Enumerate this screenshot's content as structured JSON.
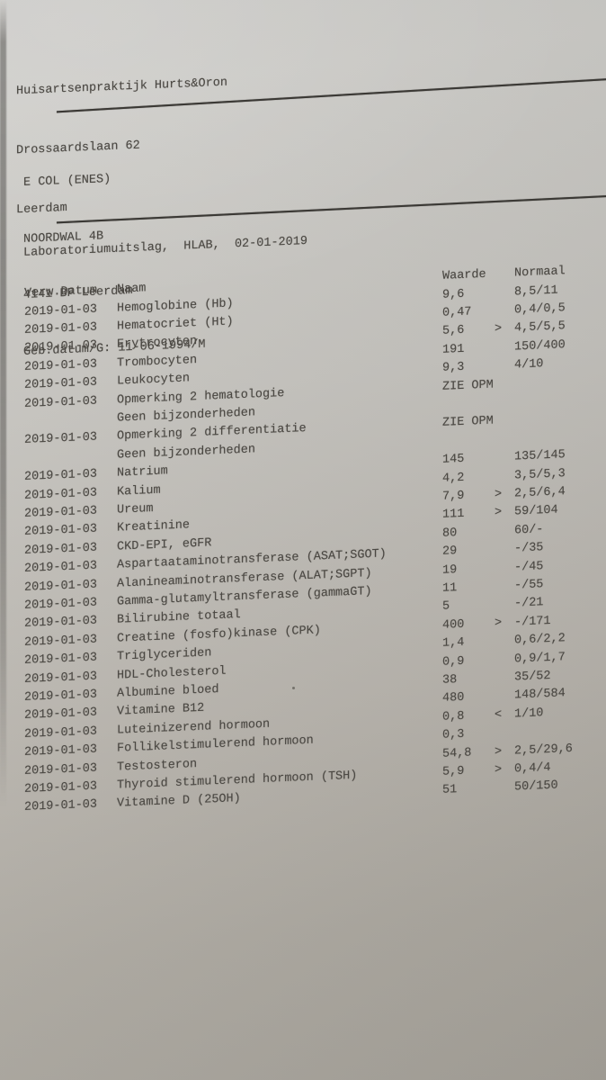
{
  "document": {
    "clinic": {
      "name": "Huisartsenpraktijk Hurts&Oron",
      "street": "Drossaardslaan 62",
      "city": "Leerdam"
    },
    "patient": {
      "name": "E COL (ENES)",
      "street": "NOORDWAL 4B",
      "postal_city": "4141 BP Leerdam",
      "birth": "Geb.datum/G: 11-06-1994/M"
    },
    "report_title": "Laboratoriumuitslag,  HLAB,  02-01-2019",
    "table": {
      "headers": {
        "date": "Verw.Datum",
        "name": "Naam",
        "value": "Waarde",
        "normal": "Normaal"
      },
      "rows": [
        {
          "date": "2019-01-03",
          "name": "Hemoglobine (Hb)",
          "value": "9,6",
          "flag": "",
          "normal": "8,5/11"
        },
        {
          "date": "2019-01-03",
          "name": "Hematocriet (Ht)",
          "value": "0,47",
          "flag": "",
          "normal": "0,4/0,5"
        },
        {
          "date": "2019-01-03",
          "name": "Erytrocyten",
          "value": "5,6",
          "flag": ">",
          "normal": "4,5/5,5"
        },
        {
          "date": "2019-01-03",
          "name": "Trombocyten",
          "value": "191",
          "flag": "",
          "normal": "150/400"
        },
        {
          "date": "2019-01-03",
          "name": "Leukocyten",
          "value": "9,3",
          "flag": "",
          "normal": "4/10"
        },
        {
          "date": "2019-01-03",
          "name": "Opmerking 2 hematologie",
          "value": "ZIE OPM",
          "flag": "",
          "normal": ""
        },
        {
          "date": "",
          "name": "Geen bijzonderheden",
          "value": "",
          "flag": "",
          "normal": ""
        },
        {
          "date": "2019-01-03",
          "name": "Opmerking 2 differentiatie",
          "value": "ZIE OPM",
          "flag": "",
          "normal": ""
        },
        {
          "date": "",
          "name": "Geen bijzonderheden",
          "value": "",
          "flag": "",
          "normal": ""
        },
        {
          "date": "2019-01-03",
          "name": "Natrium",
          "value": "145",
          "flag": "",
          "normal": "135/145"
        },
        {
          "date": "2019-01-03",
          "name": "Kalium",
          "value": "4,2",
          "flag": "",
          "normal": "3,5/5,3"
        },
        {
          "date": "2019-01-03",
          "name": "Ureum",
          "value": "7,9",
          "flag": ">",
          "normal": "2,5/6,4"
        },
        {
          "date": "2019-01-03",
          "name": "Kreatinine",
          "value": "111",
          "flag": ">",
          "normal": "59/104"
        },
        {
          "date": "2019-01-03",
          "name": "CKD-EPI, eGFR",
          "value": "80",
          "flag": "",
          "normal": "60/-"
        },
        {
          "date": "2019-01-03",
          "name": "Aspartaataminotransferase (ASAT;SGOT)",
          "value": "29",
          "flag": "",
          "normal": "-/35"
        },
        {
          "date": "2019-01-03",
          "name": "Alanineaminotransferase (ALAT;SGPT)",
          "value": "19",
          "flag": "",
          "normal": "-/45"
        },
        {
          "date": "2019-01-03",
          "name": "Gamma-glutamyltransferase (gammaGT)",
          "value": "11",
          "flag": "",
          "normal": "-/55"
        },
        {
          "date": "2019-01-03",
          "name": "Bilirubine totaal",
          "value": "5",
          "flag": "",
          "normal": "-/21"
        },
        {
          "date": "2019-01-03",
          "name": "Creatine (fosfo)kinase (CPK)",
          "value": "400",
          "flag": ">",
          "normal": "-/171"
        },
        {
          "date": "2019-01-03",
          "name": "Triglyceriden",
          "value": "1,4",
          "flag": "",
          "normal": "0,6/2,2"
        },
        {
          "date": "2019-01-03",
          "name": "HDL-Cholesterol",
          "value": "0,9",
          "flag": "",
          "normal": "0,9/1,7"
        },
        {
          "date": "2019-01-03",
          "name": "Albumine bloed",
          "value": "38",
          "flag": "",
          "normal": "35/52"
        },
        {
          "date": "2019-01-03",
          "name": "Vitamine B12",
          "value": "480",
          "flag": "",
          "normal": "148/584"
        },
        {
          "date": "2019-01-03",
          "name": "Luteinizerend hormoon",
          "value": "0,8",
          "flag": "<",
          "normal": "1/10"
        },
        {
          "date": "2019-01-03",
          "name": "Follikelstimulerend hormoon",
          "value": "0,3",
          "flag": "",
          "normal": ""
        },
        {
          "date": "2019-01-03",
          "name": "Testosteron",
          "value": "54,8",
          "flag": ">",
          "normal": "2,5/29,6"
        },
        {
          "date": "2019-01-03",
          "name": "Thyroid stimulerend hormoon (TSH)",
          "value": "5,9",
          "flag": ">",
          "normal": "0,4/4"
        },
        {
          "date": "2019-01-03",
          "name": "Vitamine D (25OH)",
          "value": "51",
          "flag": "",
          "normal": "50/150"
        }
      ]
    },
    "colors": {
      "paper_light": "#cccbc7",
      "paper_dark": "#a5a199",
      "ink": "#4b4843"
    }
  }
}
